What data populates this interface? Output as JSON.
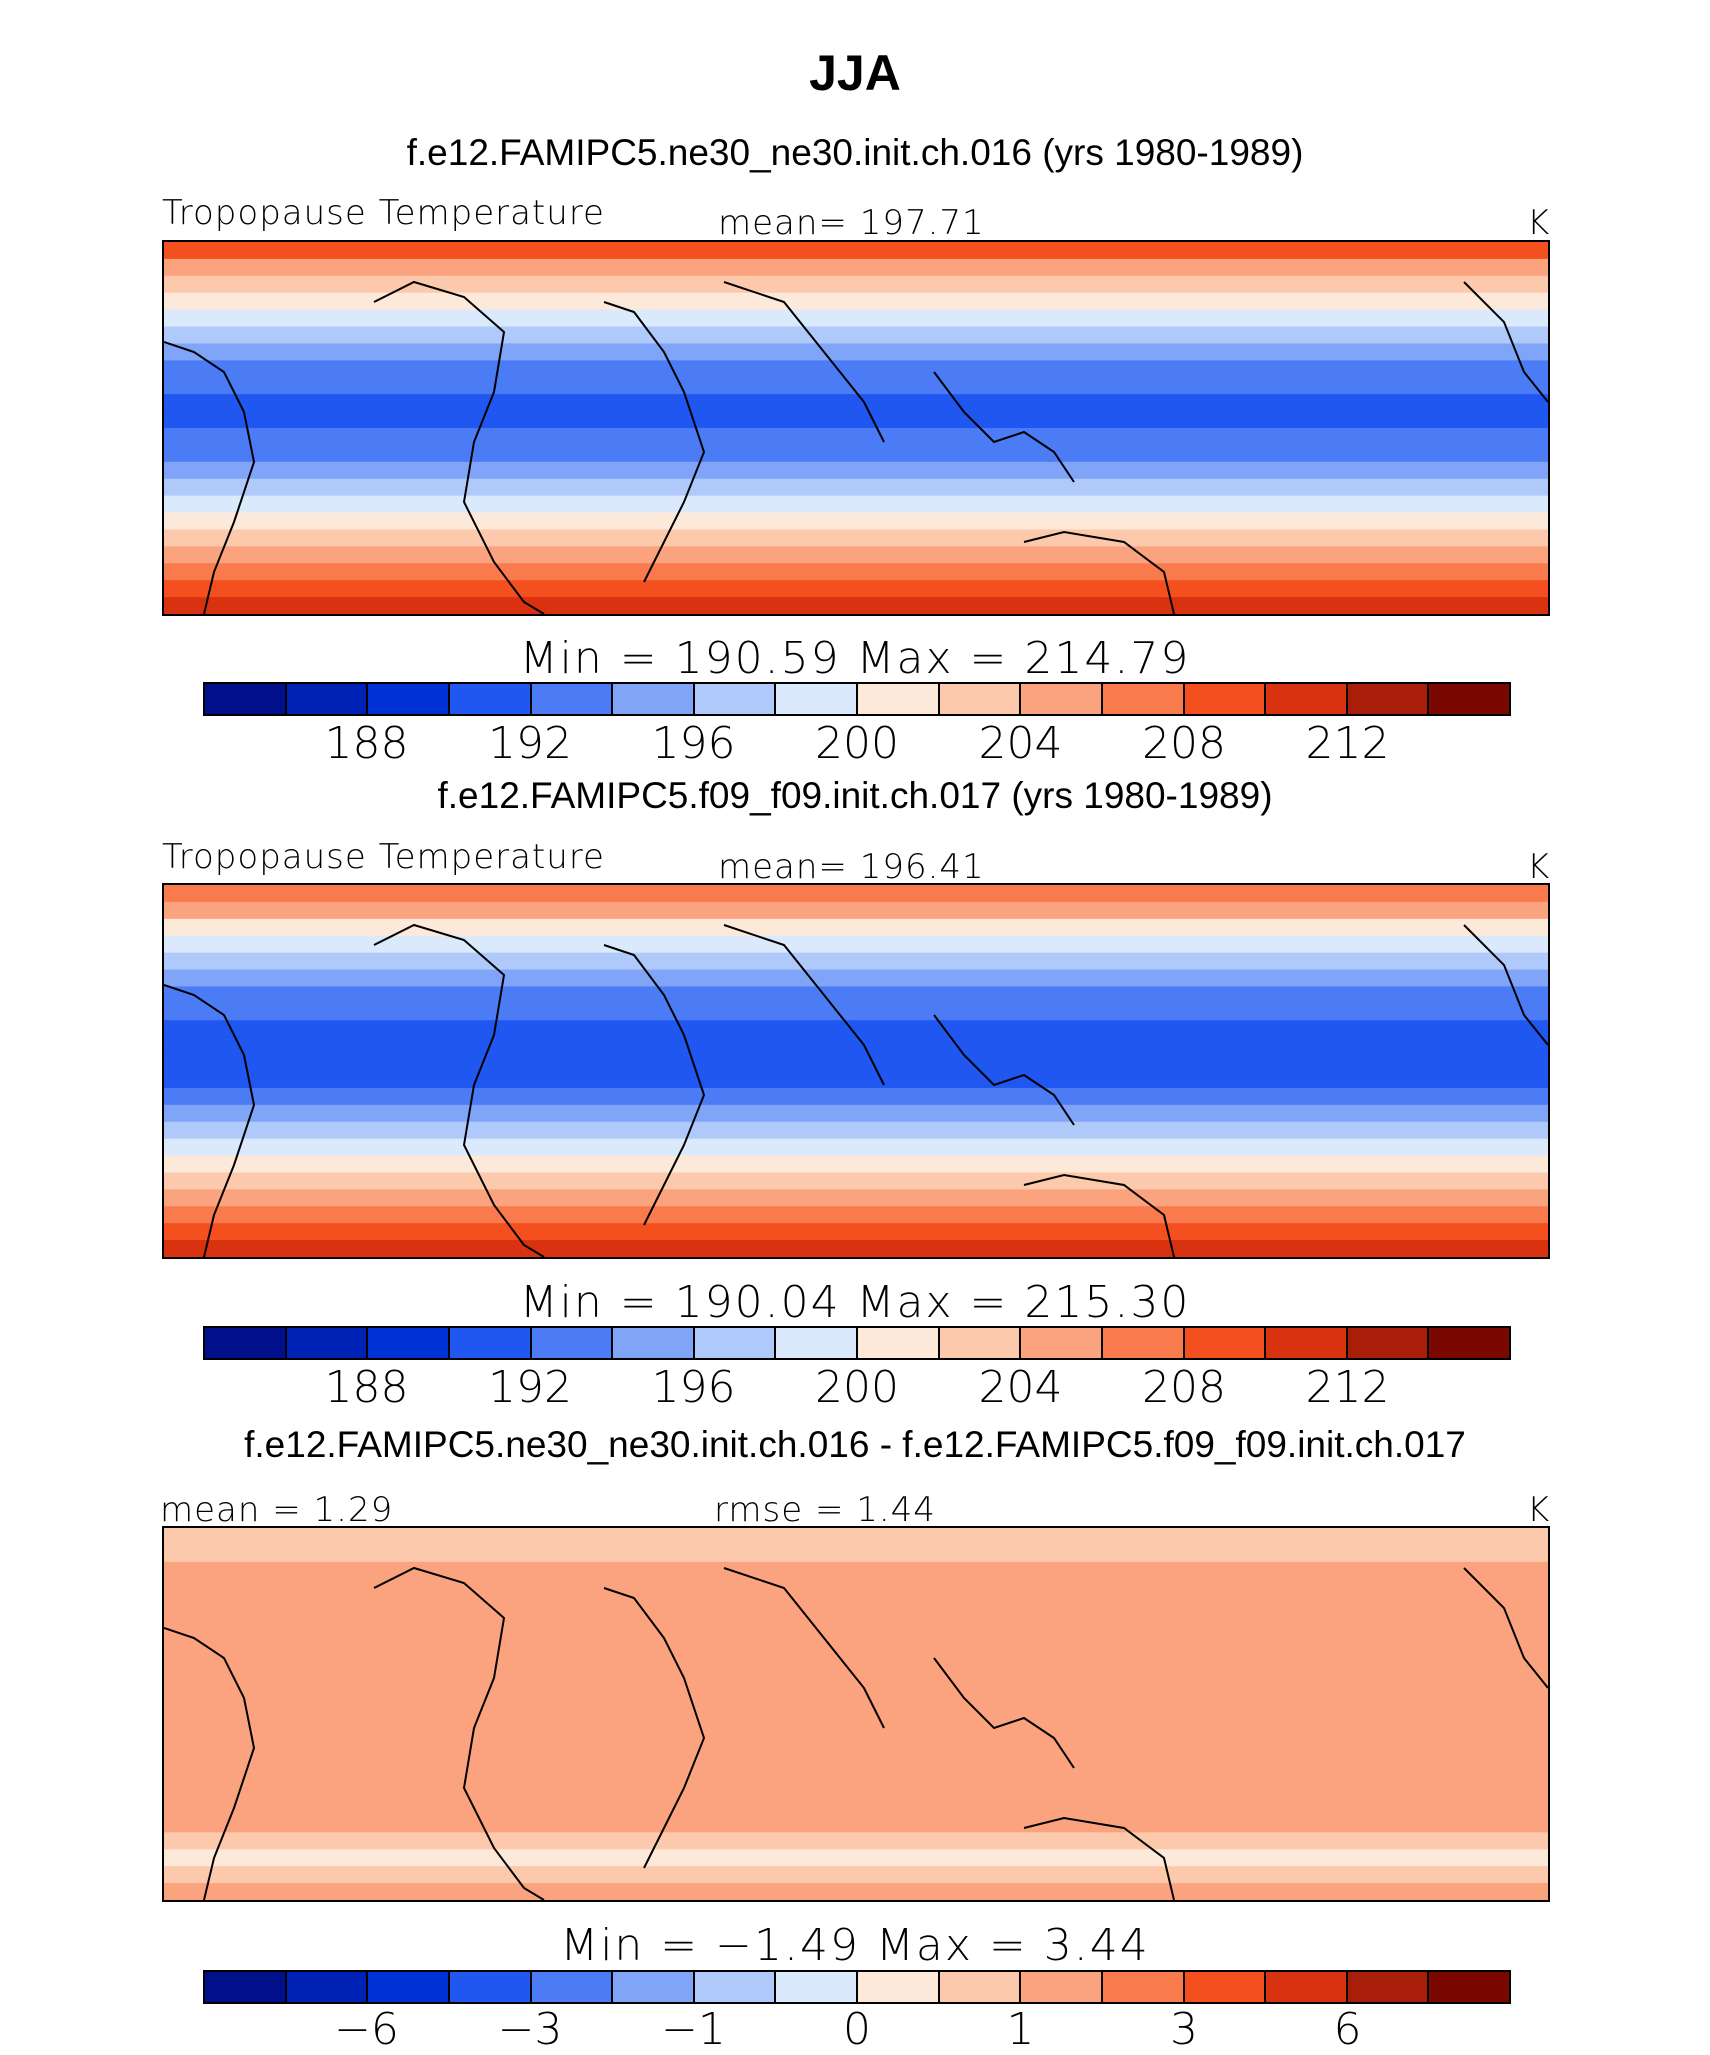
{
  "page": {
    "title": "JJA"
  },
  "palette": [
    "#000f8a",
    "#0022b4",
    "#0033d6",
    "#1f57f0",
    "#4b7cf5",
    "#7fa4f8",
    "#b0c9fb",
    "#dbe9fd",
    "#fde9d9",
    "#fcc9ad",
    "#fba27f",
    "#f97a4d",
    "#f4501f",
    "#d93210",
    "#a81e08",
    "#7a0800"
  ],
  "chart_data": [
    {
      "type": "heatmap",
      "subtitle": "f.e12.FAMIPC5.ne30_ne30.init.ch.016 (yrs 1980-1989)",
      "variable": "Tropopause Temperature",
      "mean_label": "mean= 197.71",
      "units": "K",
      "min_max": "Min = 190.59 Max = 214.79",
      "min": 190.59,
      "max": 214.79,
      "mean": 197.71,
      "colorbar_ticks": [
        "188",
        "192",
        "196",
        "200",
        "204",
        "208",
        "212"
      ],
      "bands": [
        210,
        207,
        204,
        202,
        200,
        198,
        196,
        195,
        194,
        193,
        193.5,
        194.5,
        195.5,
        197,
        199,
        201,
        203,
        205,
        207,
        209,
        211,
        212.5
      ]
    },
    {
      "type": "heatmap",
      "subtitle": "f.e12.FAMIPC5.f09_f09.init.ch.017 (yrs 1980-1989)",
      "variable": "Tropopause Temperature",
      "mean_label": "mean= 196.41",
      "units": "K",
      "min_max": "Min = 190.04 Max = 215.30",
      "min": 190.04,
      "max": 215.3,
      "mean": 196.41,
      "colorbar_ticks": [
        "188",
        "192",
        "196",
        "200",
        "204",
        "208",
        "212"
      ],
      "bands": [
        209,
        206,
        203,
        201,
        199,
        197,
        195,
        194,
        193,
        192.5,
        192.5,
        193,
        194,
        196,
        198,
        200,
        202,
        204.5,
        207,
        209,
        211,
        213
      ]
    },
    {
      "type": "heatmap",
      "subtitle": "f.e12.FAMIPC5.ne30_ne30.init.ch.016 - f.e12.FAMIPC5.f09_f09.init.ch.017",
      "mean_label": "mean =    1.29",
      "rmse_label": "rmse =    1.44",
      "units": "K",
      "min_max": "Min =   −1.49  Max =     3.44",
      "min": -1.49,
      "max": 3.44,
      "mean": 1.29,
      "rmse": 1.44,
      "colorbar_ticks": [
        "−6",
        "−3",
        "−1",
        "0",
        "1",
        "3",
        "6"
      ],
      "bands": [
        0.8,
        0.9,
        1.0,
        1.1,
        1.2,
        1.3,
        1.6,
        1.4,
        1.3,
        1.2,
        1.3,
        1.5,
        1.9,
        1.6,
        1.4,
        1.5,
        1.3,
        1.1,
        0.9,
        0.4,
        0.9,
        1.1
      ]
    }
  ]
}
